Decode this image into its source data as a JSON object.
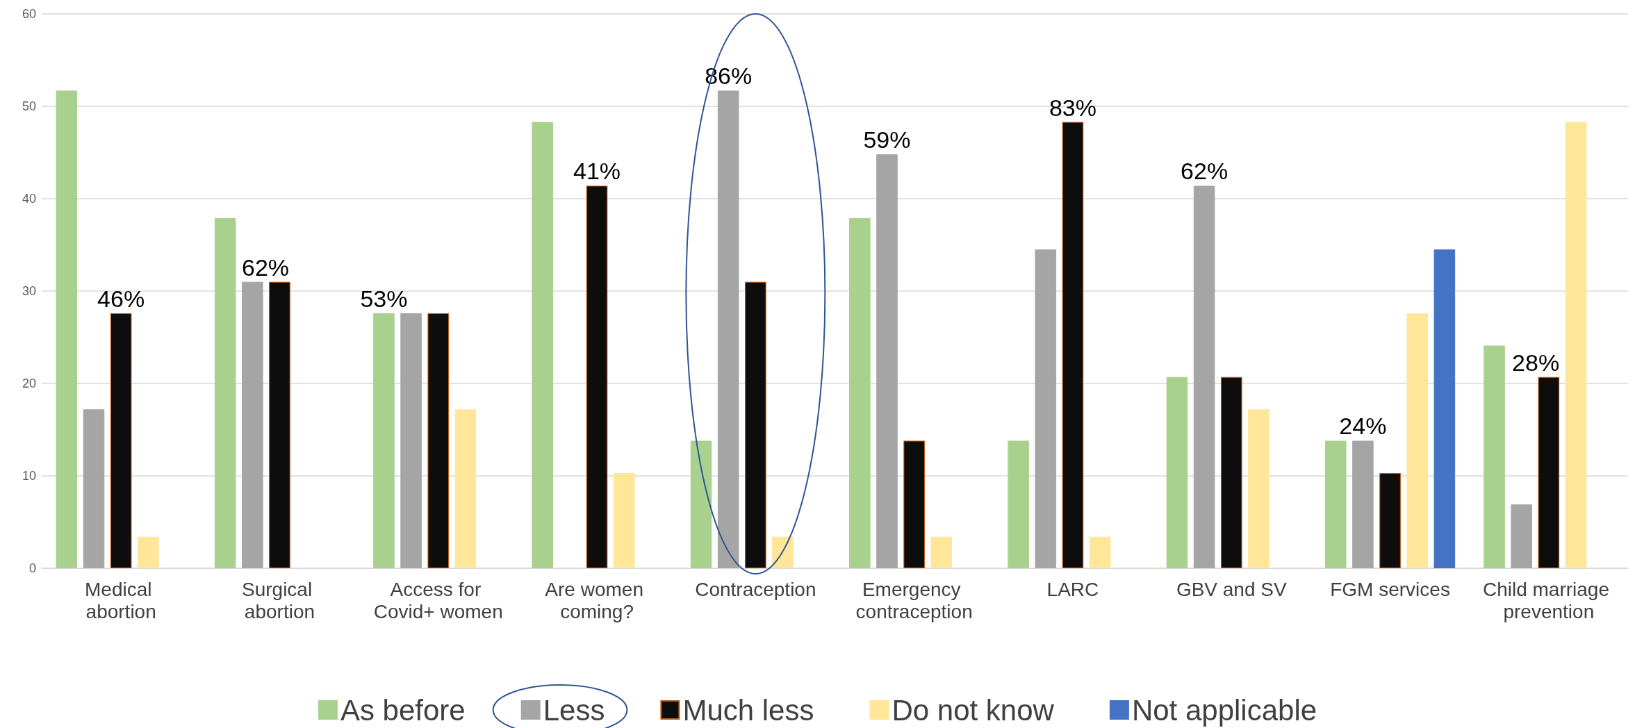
{
  "chart_data": {
    "type": "bar",
    "categories": [
      "Medical abortion",
      "Surgical abortion",
      "Access for Covid+ women",
      "Are women coming?",
      "Contraception",
      "Emergency contraception",
      "LARC",
      "GBV and SV",
      "FGM services",
      "Child marriage prevention"
    ],
    "series": [
      {
        "name": "As before",
        "color": "#a9d18e",
        "values": [
          51.7,
          37.9,
          27.6,
          48.3,
          13.8,
          37.9,
          13.8,
          20.7,
          13.8,
          24.1
        ]
      },
      {
        "name": "Less",
        "color": "#a5a5a5",
        "values": [
          17.2,
          31.0,
          27.6,
          null,
          51.7,
          44.8,
          34.5,
          41.4,
          13.8,
          6.9
        ]
      },
      {
        "name": "Much less",
        "color": "#0d0d0d",
        "values": [
          27.6,
          31.0,
          27.6,
          41.4,
          31.0,
          13.8,
          48.3,
          20.7,
          10.3,
          20.7
        ]
      },
      {
        "name": "Do not know",
        "color": "#ffe699",
        "values": [
          3.4,
          null,
          17.2,
          10.3,
          3.4,
          3.4,
          3.4,
          17.2,
          27.6,
          48.3
        ]
      },
      {
        "name": "Not applicable",
        "color": "#4472c4",
        "values": [
          null,
          null,
          null,
          null,
          null,
          null,
          null,
          null,
          34.5,
          null
        ]
      }
    ],
    "annotations": [
      {
        "text": "46%",
        "x": "Medical abortion",
        "y": 27.6
      },
      {
        "text": "62%",
        "x": "Surgical abortion",
        "y": 31.0
      },
      {
        "text": "53%",
        "x": "Access for Covid+ women",
        "y": 27.6
      },
      {
        "text": "41%",
        "x": "Are women coming?",
        "y": 41.4
      },
      "86%",
      "59%",
      {
        "text": "83%",
        "x": "LARC",
        "y": 48.3
      },
      "62%",
      "24%",
      {
        "text": "28%",
        "x": "Child marriage prevention",
        "y": 20.7
      }
    ],
    "ylim": [
      0,
      60
    ],
    "yticks": [
      0,
      10,
      20,
      30,
      40,
      50,
      60
    ],
    "grid": "y",
    "legend": "bottom"
  }
}
